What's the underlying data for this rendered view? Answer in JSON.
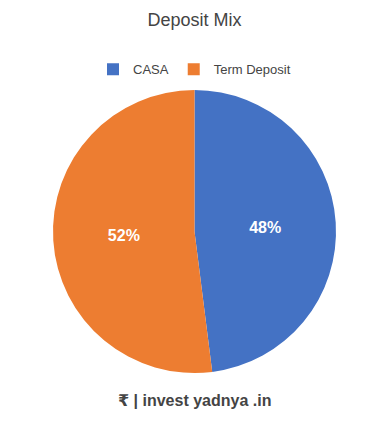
{
  "chart_data": {
    "type": "pie",
    "title": "Deposit Mix",
    "categories": [
      "CASA",
      "Term Deposit"
    ],
    "values": [
      48,
      52
    ],
    "value_labels": [
      "48%",
      "52%"
    ],
    "colors": [
      "#4472C4",
      "#ED7D31"
    ],
    "data_labels": true,
    "legend": "top",
    "annotations": [
      "₹",
      "|",
      "invest",
      "yadnya",
      ".in"
    ]
  }
}
